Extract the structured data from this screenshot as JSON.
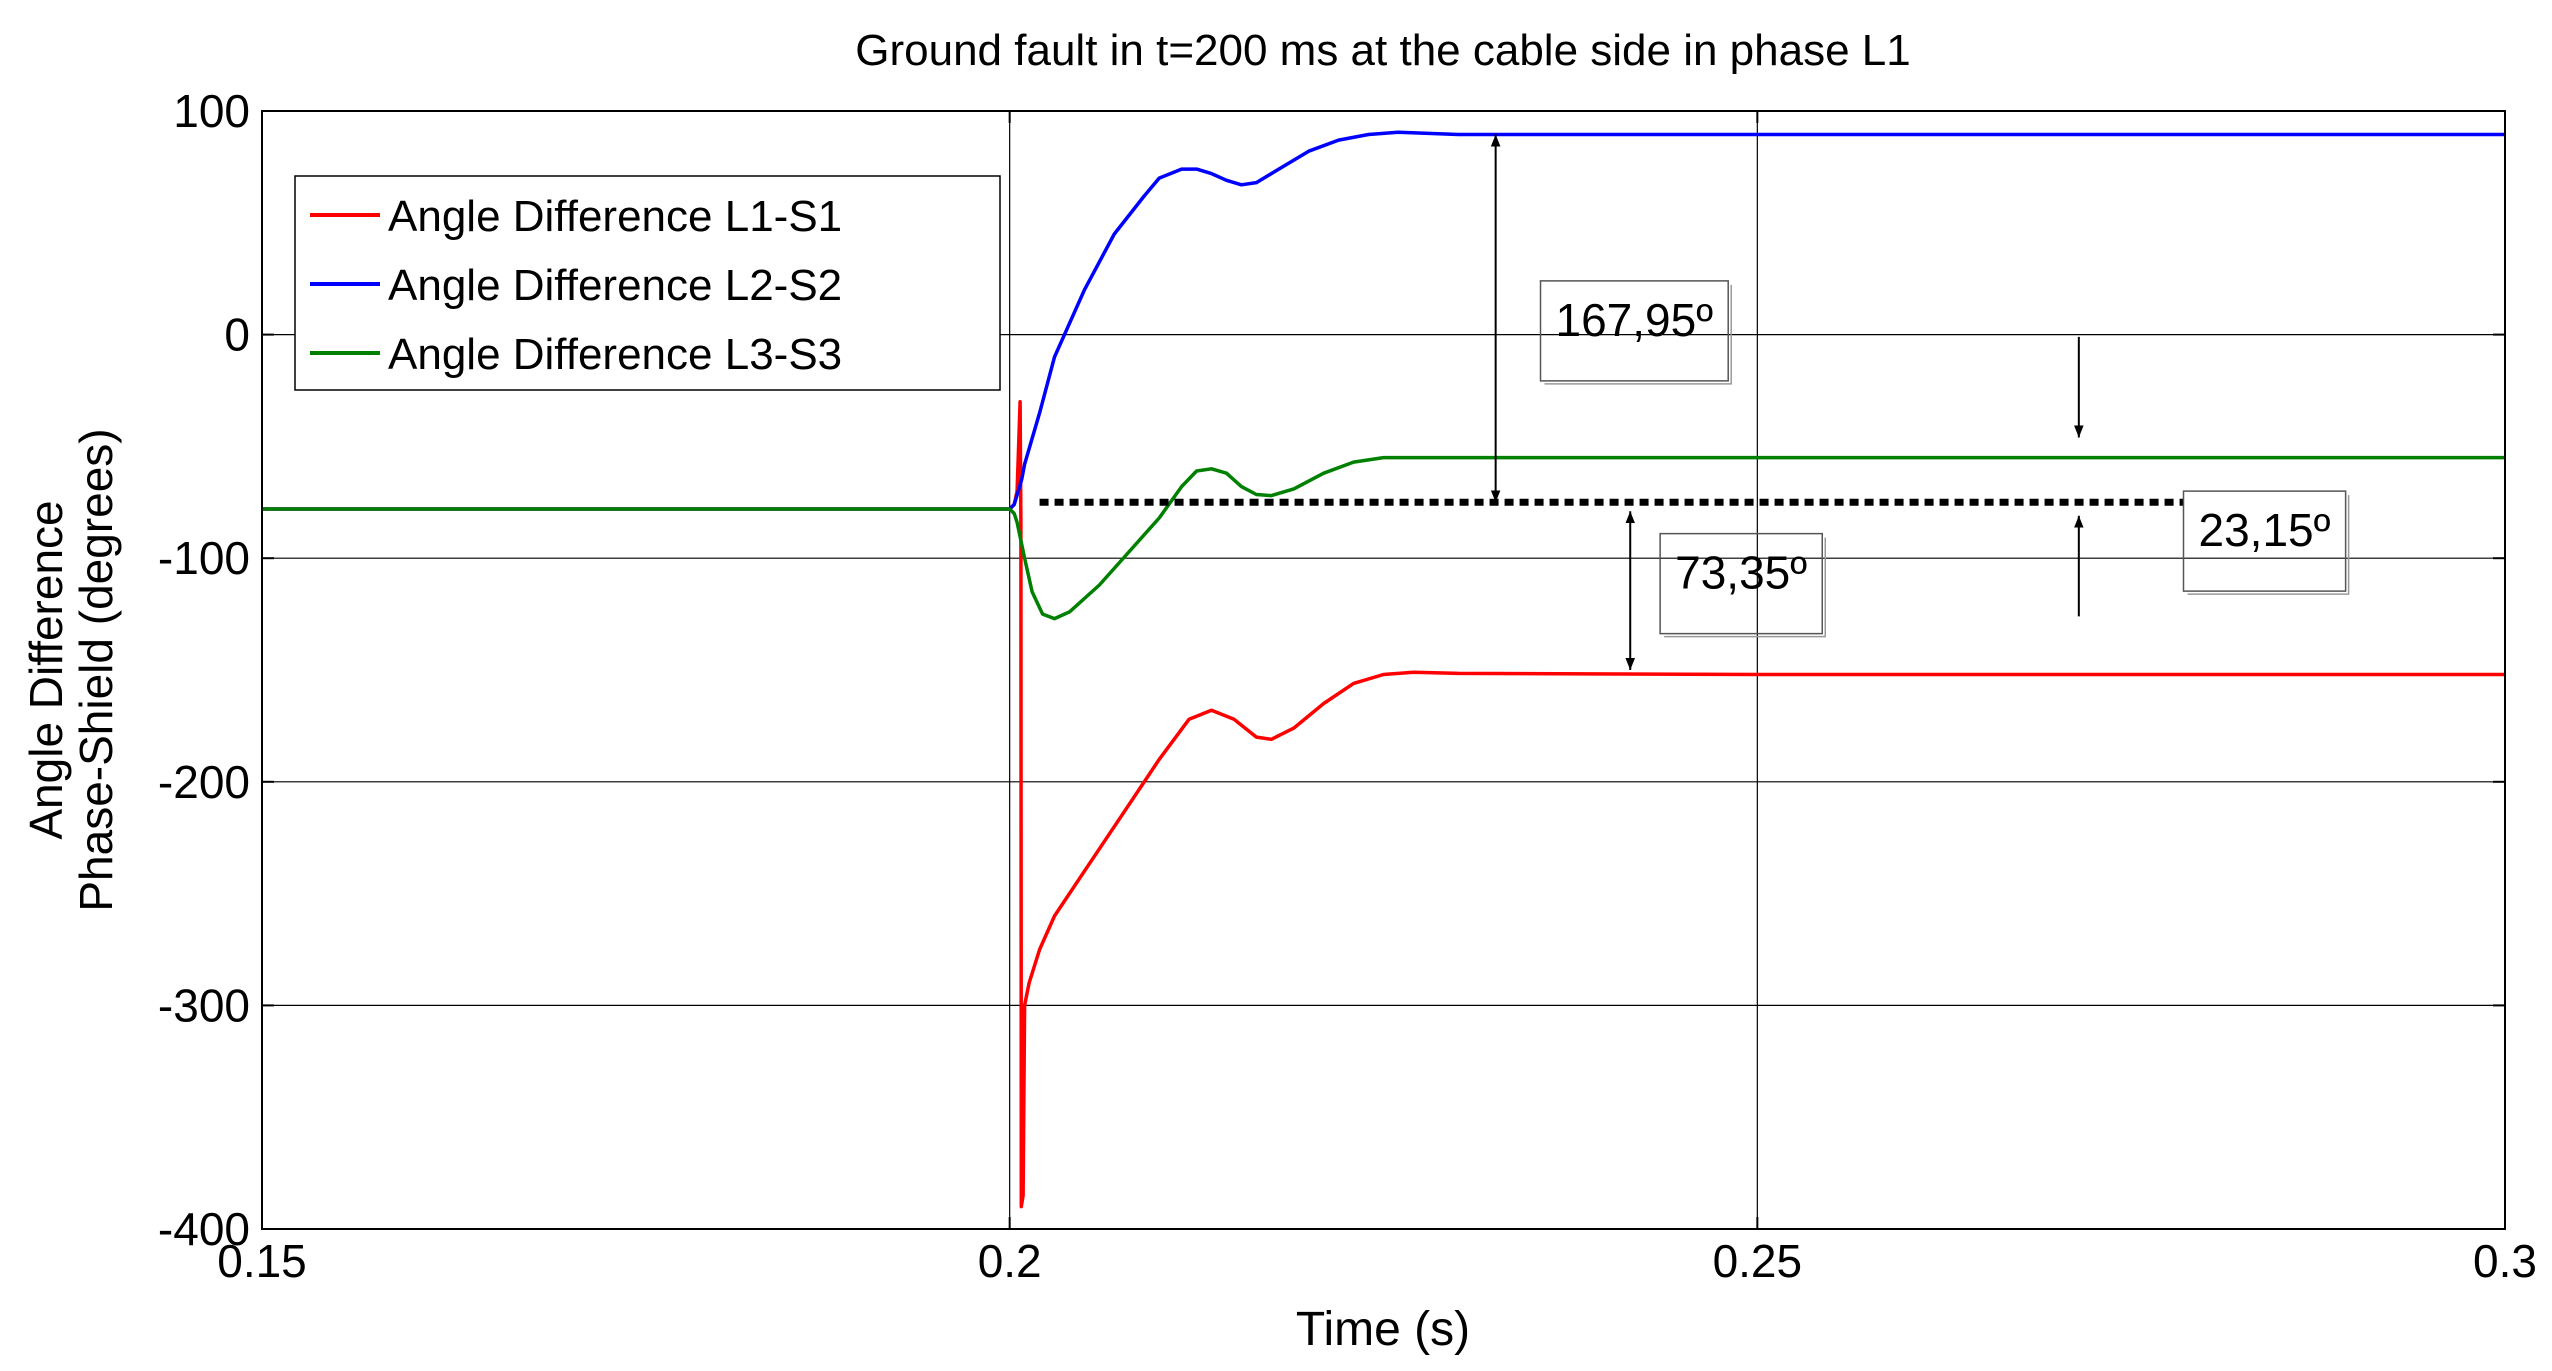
{
  "chart_data": {
    "type": "line",
    "title": "Ground fault in t=200 ms at the cable side in phase L1",
    "xlabel": "Time (s)",
    "ylabel_lines": [
      "Angle Difference",
      "Phase-Shield (degrees)"
    ],
    "xlim": [
      0.15,
      0.3
    ],
    "ylim": [
      -400,
      100
    ],
    "xticks": [
      0.15,
      0.2,
      0.25,
      0.3
    ],
    "xtick_labels": [
      "0.15",
      "0.2",
      "0.25",
      "0.3"
    ],
    "yticks": [
      -400,
      -300,
      -200,
      -100,
      0,
      100
    ],
    "ytick_labels": [
      "-400",
      "-300",
      "-200",
      "-100",
      "0",
      "100"
    ],
    "grid": true,
    "legend_position": "top-left",
    "series": [
      {
        "name": "Angle Difference L1-S1",
        "color": "#ff0000",
        "points": [
          [
            0.15,
            -78
          ],
          [
            0.2,
            -78
          ],
          [
            0.2003,
            -76
          ],
          [
            0.2005,
            -70
          ],
          [
            0.2007,
            -30
          ],
          [
            0.20075,
            -85
          ],
          [
            0.20078,
            -390
          ],
          [
            0.2009,
            -385
          ],
          [
            0.201,
            -300
          ],
          [
            0.2013,
            -290
          ],
          [
            0.202,
            -275
          ],
          [
            0.203,
            -260
          ],
          [
            0.205,
            -240
          ],
          [
            0.208,
            -210
          ],
          [
            0.21,
            -190
          ],
          [
            0.212,
            -172
          ],
          [
            0.2135,
            -168
          ],
          [
            0.215,
            -172
          ],
          [
            0.2165,
            -180
          ],
          [
            0.2175,
            -181
          ],
          [
            0.219,
            -176
          ],
          [
            0.221,
            -165
          ],
          [
            0.223,
            -156
          ],
          [
            0.225,
            -152
          ],
          [
            0.227,
            -151
          ],
          [
            0.23,
            -151.5
          ],
          [
            0.25,
            -152
          ],
          [
            0.3,
            -152
          ]
        ]
      },
      {
        "name": "Angle Difference L2-S2",
        "color": "#0000ff",
        "points": [
          [
            0.15,
            -78
          ],
          [
            0.2,
            -78
          ],
          [
            0.2003,
            -76
          ],
          [
            0.2008,
            -65
          ],
          [
            0.201,
            -58
          ],
          [
            0.202,
            -35
          ],
          [
            0.203,
            -10
          ],
          [
            0.205,
            20
          ],
          [
            0.207,
            45
          ],
          [
            0.209,
            62
          ],
          [
            0.21,
            70
          ],
          [
            0.2115,
            74
          ],
          [
            0.2125,
            74
          ],
          [
            0.2135,
            72
          ],
          [
            0.2145,
            69
          ],
          [
            0.2155,
            67
          ],
          [
            0.2165,
            68
          ],
          [
            0.218,
            74
          ],
          [
            0.22,
            82
          ],
          [
            0.222,
            87
          ],
          [
            0.224,
            89.5
          ],
          [
            0.226,
            90.5
          ],
          [
            0.228,
            90
          ],
          [
            0.23,
            89.5
          ],
          [
            0.25,
            89.5
          ],
          [
            0.3,
            89.5
          ]
        ]
      },
      {
        "name": "Angle Difference L3-S3",
        "color": "#008000",
        "points": [
          [
            0.15,
            -78
          ],
          [
            0.2,
            -78
          ],
          [
            0.2003,
            -80
          ],
          [
            0.2005,
            -84
          ],
          [
            0.201,
            -100
          ],
          [
            0.2015,
            -115
          ],
          [
            0.2022,
            -125
          ],
          [
            0.203,
            -127
          ],
          [
            0.204,
            -124
          ],
          [
            0.206,
            -112
          ],
          [
            0.208,
            -97
          ],
          [
            0.21,
            -82
          ],
          [
            0.2115,
            -68
          ],
          [
            0.2125,
            -61
          ],
          [
            0.2135,
            -60
          ],
          [
            0.2145,
            -62
          ],
          [
            0.2155,
            -68
          ],
          [
            0.2165,
            -71.5
          ],
          [
            0.2175,
            -72
          ],
          [
            0.219,
            -69
          ],
          [
            0.221,
            -62
          ],
          [
            0.223,
            -57
          ],
          [
            0.225,
            -55
          ],
          [
            0.23,
            -55
          ],
          [
            0.3,
            -55
          ]
        ]
      }
    ],
    "reference_line": {
      "x": [
        0.202,
        0.2785
      ],
      "y": -75,
      "style": "dotted-black"
    },
    "annotations": [
      {
        "text": "167,95º",
        "type": "double-arrow",
        "x": 0.2325,
        "y_from": 89.5,
        "y_to": -75,
        "box_x": 0.2355,
        "box_y": 24
      },
      {
        "text": "73,35º",
        "type": "double-arrow",
        "x": 0.2415,
        "y_from": -79,
        "y_to": -150,
        "box_x": 0.2435,
        "box_y": -89
      },
      {
        "text": "23,15º",
        "type": "inward-arrows",
        "x": 0.2715,
        "top_from": -1,
        "top_to": -46,
        "bottom_from": -126,
        "bottom_to": -81,
        "box_x": 0.2785,
        "box_y": -70
      }
    ]
  }
}
